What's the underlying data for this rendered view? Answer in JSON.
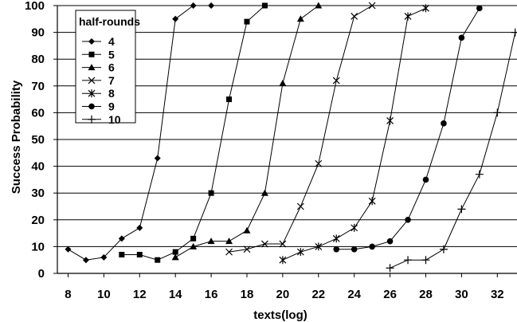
{
  "chart_data": {
    "type": "line",
    "xlabel": "texts(log)",
    "ylabel": "Success Probability",
    "xlim": [
      7.4,
      33.1
    ],
    "ylim": [
      0,
      100
    ],
    "xticks": [
      8,
      10,
      12,
      14,
      16,
      18,
      20,
      22,
      24,
      26,
      28,
      30,
      32
    ],
    "yticks": [
      0,
      10,
      20,
      30,
      40,
      50,
      60,
      70,
      80,
      90,
      100
    ],
    "grid": "horizontal",
    "legend": {
      "title": "half-rounds",
      "placement": "top-left"
    },
    "series": [
      {
        "name": "4",
        "marker": "diamond",
        "x": [
          8,
          9,
          10,
          11,
          12,
          13,
          14,
          15,
          16
        ],
        "y": [
          9,
          5,
          6,
          13,
          17,
          43,
          95,
          100,
          100
        ]
      },
      {
        "name": "5",
        "marker": "square",
        "x": [
          11,
          12,
          13,
          14,
          15,
          16,
          17,
          18,
          19
        ],
        "y": [
          7,
          7,
          5,
          8,
          13,
          30,
          65,
          94,
          100
        ]
      },
      {
        "name": "6",
        "marker": "triangle",
        "x": [
          14,
          15,
          16,
          17,
          18,
          19,
          20,
          21,
          22
        ],
        "y": [
          6,
          10,
          12,
          12,
          16,
          30,
          71,
          95,
          100
        ]
      },
      {
        "name": "7",
        "marker": "x",
        "x": [
          17,
          18,
          19,
          20,
          21,
          22,
          23,
          24,
          25
        ],
        "y": [
          8,
          9,
          11,
          11,
          25,
          41,
          72,
          96,
          100
        ]
      },
      {
        "name": "8",
        "marker": "star",
        "x": [
          20,
          21,
          22,
          23,
          24,
          25,
          26,
          27,
          28
        ],
        "y": [
          5,
          8,
          10,
          13,
          17,
          27,
          57,
          96,
          99
        ]
      },
      {
        "name": "9",
        "marker": "circle",
        "x": [
          23,
          24,
          25,
          26,
          27,
          28,
          29,
          30,
          31
        ],
        "y": [
          9,
          9,
          10,
          12,
          20,
          35,
          56,
          88,
          99
        ]
      },
      {
        "name": "10",
        "marker": "plus",
        "x": [
          26,
          27,
          28,
          29,
          30,
          31,
          32,
          33
        ],
        "y": [
          2,
          5,
          5,
          9,
          24,
          37,
          60,
          90
        ]
      }
    ]
  }
}
